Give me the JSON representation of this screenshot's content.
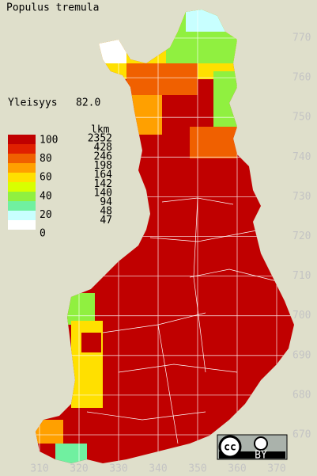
{
  "title": "Populus tremula",
  "frequency": {
    "label": "Yleisyys",
    "value": "82.0"
  },
  "legend": {
    "scale_labels": [
      100,
      80,
      60,
      40,
      20,
      0
    ],
    "count_header": "lkm",
    "classes": [
      {
        "color": "#c00000",
        "count": 2352
      },
      {
        "color": "#e02000",
        "count": 428
      },
      {
        "color": "#f06000",
        "count": 246
      },
      {
        "color": "#ffa000",
        "count": 198
      },
      {
        "color": "#ffe000",
        "count": 164
      },
      {
        "color": "#d8ff00",
        "count": 142
      },
      {
        "color": "#90f040",
        "count": 140
      },
      {
        "color": "#70f0a0",
        "count": 94
      },
      {
        "color": "#c8ffff",
        "count": 48
      },
      {
        "color": "#ffffff",
        "count": 47
      }
    ]
  },
  "x_labels": [
    310,
    320,
    330,
    340,
    350,
    360,
    370
  ],
  "y_labels": [
    770,
    760,
    750,
    740,
    730,
    720,
    710,
    700,
    690,
    680,
    670
  ],
  "license": {
    "icon": "cc",
    "label": "BY"
  }
}
